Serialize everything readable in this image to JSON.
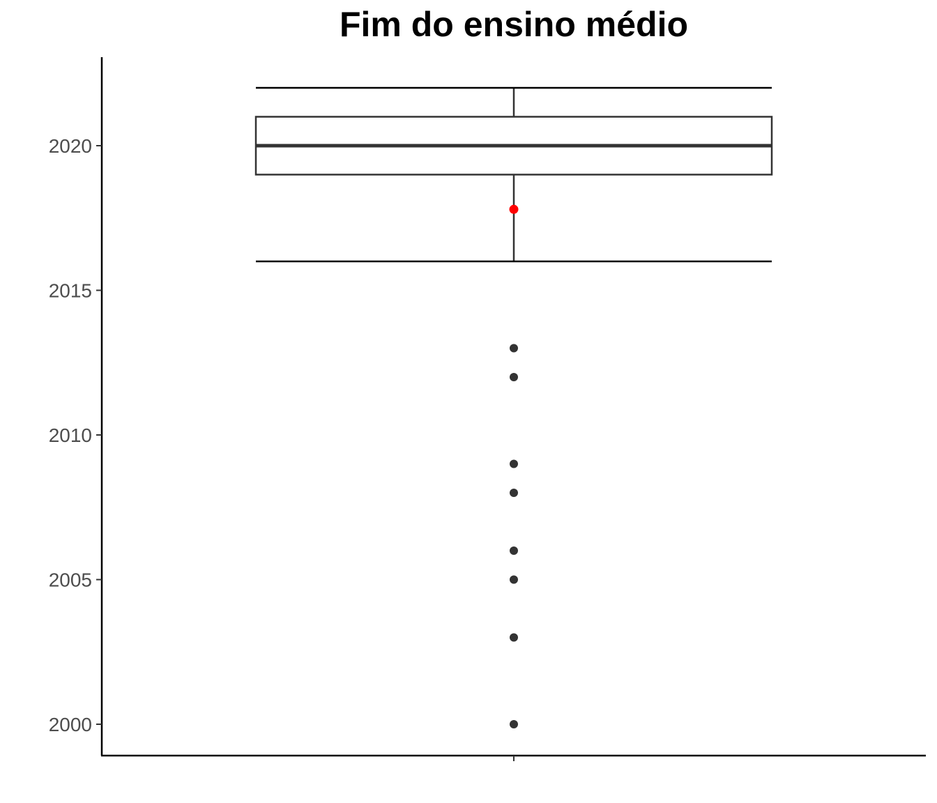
{
  "chart_data": {
    "type": "boxplot",
    "title": "Fim do ensino médio",
    "xlabel": "",
    "ylabel": "",
    "ylim": [
      1999,
      2022.1
    ],
    "yticks": [
      2000,
      2005,
      2010,
      2015,
      2020
    ],
    "box": {
      "whisker_low": 2016,
      "q1": 2019,
      "median": 2020,
      "q3": 2021,
      "whisker_high": 2022
    },
    "mean": 2017.8,
    "outliers": [
      2013,
      2012,
      2009,
      2008,
      2006,
      2005,
      2003,
      2000
    ],
    "grid": false,
    "colors": {
      "box": "#333333",
      "mean": "#ff0000",
      "outlier": "#333333",
      "axis": "#000000"
    }
  }
}
